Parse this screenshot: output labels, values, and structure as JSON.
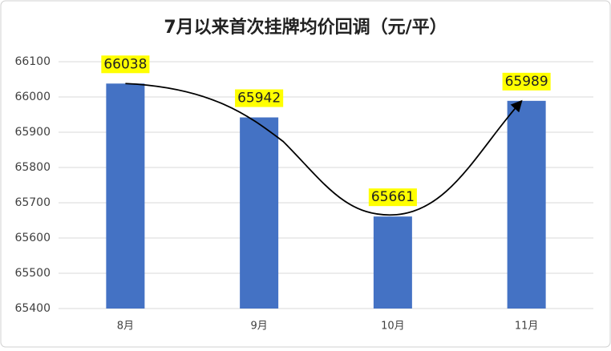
{
  "chart_data": {
    "type": "bar",
    "title": "7月以来首次挂牌均价回调（元/平）",
    "categories": [
      "8月",
      "9月",
      "10月",
      "11月"
    ],
    "values": [
      66038,
      65942,
      65661,
      65989
    ],
    "color": "#4472c4",
    "ylim": [
      65400,
      66100
    ],
    "yticks": [
      65400,
      65500,
      65600,
      65700,
      65800,
      65900,
      66000,
      66100
    ],
    "grid": true
  }
}
